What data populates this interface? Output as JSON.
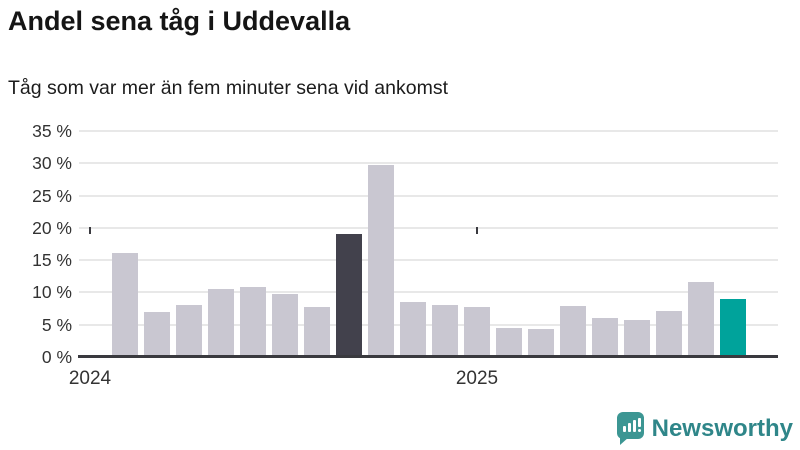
{
  "header": {
    "title": "Andel sena tåg i Uddevalla",
    "subtitle": "Tåg som var mer än fem minuter sena vid ankomst"
  },
  "chart_data": {
    "type": "bar",
    "title": "Andel sena tåg i Uddevalla",
    "subtitle": "Tåg som var mer än fem minuter sena vid ankomst",
    "xlabel": "",
    "ylabel": "",
    "y_unit": "%",
    "ylim": [
      0,
      35
    ],
    "ytick_step": 5,
    "ytick_labels": [
      "35 %",
      "30 %",
      "25 %",
      "20 %",
      "15 %",
      "10 %",
      "5 %",
      "0 %"
    ],
    "xtick_labels": [
      "2024",
      "2025"
    ],
    "grid": true,
    "legend": "none",
    "values": [
      16.1,
      7.0,
      8.0,
      10.6,
      10.9,
      9.7,
      7.7,
      19.0,
      29.8,
      8.5,
      8.1,
      7.7,
      4.5,
      4.4,
      7.9,
      6.1,
      5.8,
      7.2,
      11.6,
      9.0
    ],
    "highlight_dark_index": 7,
    "latest_index": 19,
    "colors": {
      "bar_default": "#c9c7d1",
      "bar_highlight_dark": "#42414c",
      "bar_latest": "#00a39b",
      "axis": "#3a3a3f",
      "gridline": "#e8e8e8",
      "tick_text": "#333333"
    }
  },
  "footer": {
    "brand": "Newsworthy",
    "brand_color": "#2f8689"
  }
}
